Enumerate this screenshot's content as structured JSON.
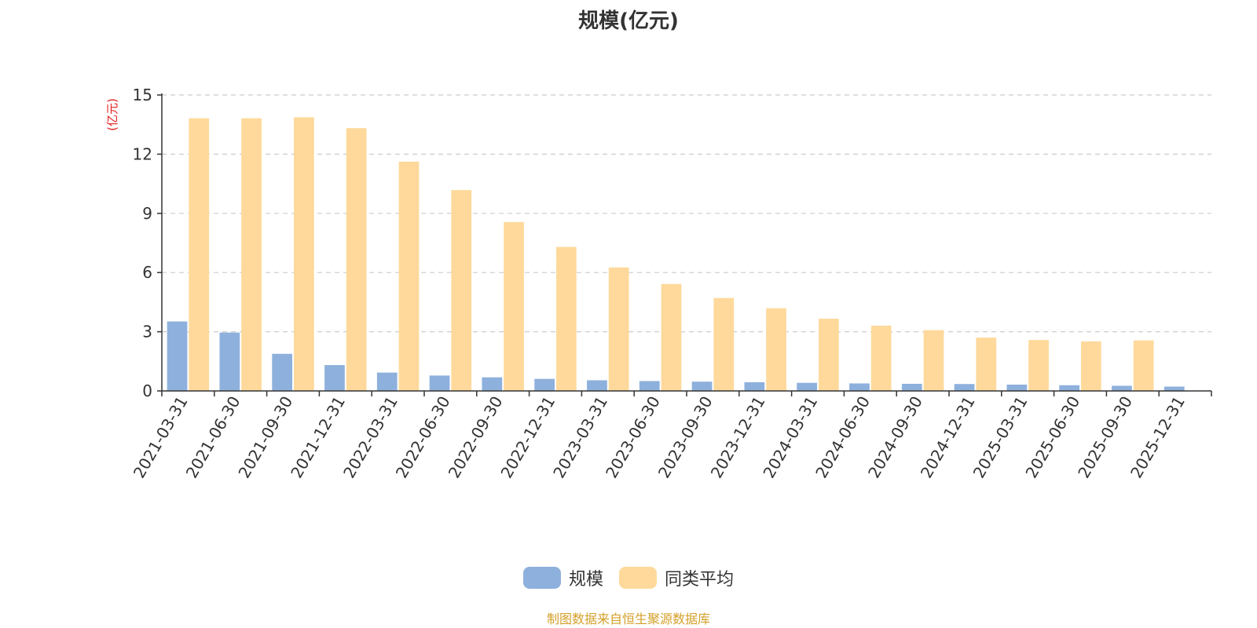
{
  "chart_data": {
    "type": "bar",
    "title": "规模(亿元)",
    "ylabel": "(亿元)",
    "xlabel": "",
    "ylim": [
      0,
      15
    ],
    "yticks": [
      0,
      3,
      6,
      9,
      12,
      15
    ],
    "grid": true,
    "legend_position": "bottom",
    "categories": [
      "2021-03-31",
      "2021-06-30",
      "2021-09-30",
      "2021-12-31",
      "2022-03-31",
      "2022-06-30",
      "2022-09-30",
      "2022-12-31",
      "2023-03-31",
      "2023-06-30",
      "2023-09-30",
      "2023-12-31",
      "2024-03-31",
      "2024-06-30",
      "2024-09-30",
      "2024-12-31",
      "2025-03-31",
      "2025-06-30",
      "2025-09-30",
      "2025-12-31"
    ],
    "series": [
      {
        "name": "规模",
        "color": "#8eb0dc",
        "values": [
          3.52,
          2.96,
          1.88,
          1.31,
          0.93,
          0.78,
          0.69,
          0.61,
          0.54,
          0.5,
          0.47,
          0.44,
          0.41,
          0.38,
          0.36,
          0.35,
          0.32,
          0.29,
          0.26,
          0.22
        ]
      },
      {
        "name": "同类平均",
        "color": "#fed99b",
        "values": [
          13.82,
          13.82,
          13.87,
          13.32,
          11.62,
          10.18,
          8.56,
          7.3,
          6.26,
          5.42,
          4.71,
          4.19,
          3.66,
          3.31,
          3.08,
          2.7,
          2.58,
          2.51,
          2.56,
          null
        ]
      }
    ]
  },
  "source_note": "制图数据来自恒生聚源数据库"
}
